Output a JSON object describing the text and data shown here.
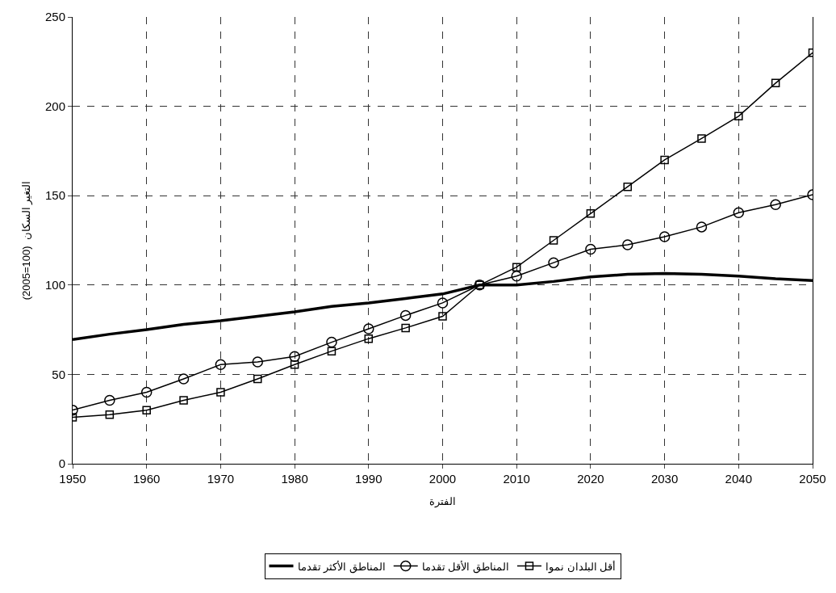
{
  "chart_data": {
    "type": "line",
    "xlabel": "الفترة",
    "ylabel": "التغير السكان  (100=2005)",
    "x": [
      1950,
      1955,
      1960,
      1965,
      1970,
      1975,
      1980,
      1985,
      1990,
      1995,
      2000,
      2005,
      2010,
      2015,
      2020,
      2025,
      2030,
      2035,
      2040,
      2045,
      2050
    ],
    "series": [
      {
        "name": "أقل البلدان نموا",
        "color": "#000000",
        "marker": "square",
        "values": [
          26,
          27.5,
          30,
          35.5,
          40,
          47.5,
          55.5,
          63,
          70,
          76,
          82.5,
          100,
          110,
          125,
          140,
          155,
          170,
          182,
          194.5,
          213,
          230
        ]
      },
      {
        "name": "المناطق الأقل تقدما",
        "color": "#000000",
        "marker": "circle",
        "values": [
          30,
          35.5,
          40,
          47.5,
          55.5,
          57,
          60,
          68,
          75.5,
          83,
          90,
          100,
          105,
          112.5,
          120,
          122.5,
          127,
          132.5,
          140.5,
          145,
          150.5
        ]
      },
      {
        "name": "المناطق الأكثر تقدما",
        "color": "#000000",
        "marker": "none",
        "values": [
          69.5,
          72.5,
          75,
          78,
          80,
          82.5,
          85,
          88,
          90,
          92.5,
          95,
          100,
          100,
          102,
          104.5,
          106,
          106.5,
          106,
          105,
          103.5,
          102.5
        ]
      }
    ],
    "xlim": [
      1950,
      2050
    ],
    "xticks": [
      1950,
      1960,
      1970,
      1980,
      1990,
      2000,
      2010,
      2020,
      2030,
      2040,
      2050
    ],
    "ylim": [
      0,
      250
    ],
    "yticks": [
      0,
      50,
      100,
      150,
      200,
      250
    ],
    "grid": true,
    "legend": "bottom",
    "line_style": "solid"
  }
}
